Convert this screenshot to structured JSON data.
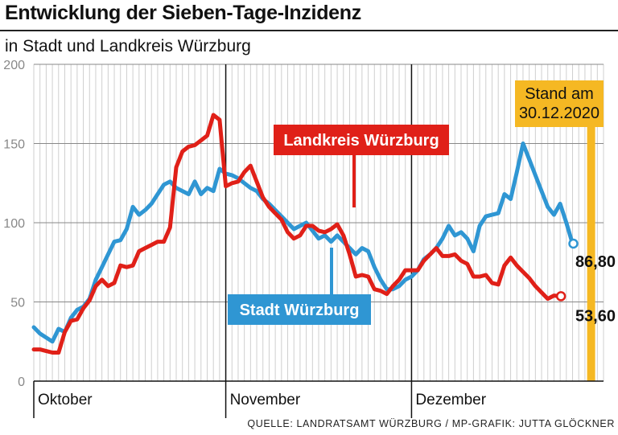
{
  "header": {
    "title": "Entwicklung der Sieben-Tage-Inzidenz",
    "subtitle": "in Stadt und Landkreis Würzburg",
    "source": "QUELLE: LANDRATSAMT WÜRZBURG / MP-GRAFIK: JUTTA GLÖCKNER"
  },
  "colors": {
    "stadt": "#2f96d3",
    "landkreis": "#e02018",
    "stand_bar": "#f5b823",
    "grid": "#cfcfcf"
  },
  "chart_data": {
    "type": "line",
    "title": "Entwicklung der Sieben-Tage-Inzidenz",
    "subtitle": "in Stadt und Landkreis Würzburg",
    "ylim": [
      0,
      200
    ],
    "yticks": [
      "0",
      "50",
      "100",
      "150",
      "200"
    ],
    "months": [
      {
        "label": "Oktober",
        "start_day": 0
      },
      {
        "label": "November",
        "start_day": 31
      },
      {
        "label": "Dezember",
        "start_day": 61
      }
    ],
    "x_note": "day index 0 = 1 Oct 2020, 90 = 30 Dec 2020",
    "xlim": [
      0,
      92
    ],
    "stand_label": [
      "Stand am",
      "30.12.2020"
    ],
    "stand_day": 90,
    "series": [
      {
        "name": "Stadt Würzburg",
        "color": "#2f96d3",
        "end_label": "86,80",
        "points": [
          [
            0,
            34
          ],
          [
            1,
            30
          ],
          [
            3,
            25
          ],
          [
            4,
            33
          ],
          [
            5,
            31
          ],
          [
            6,
            40
          ],
          [
            7,
            45
          ],
          [
            8,
            47
          ],
          [
            9,
            52
          ],
          [
            10,
            64
          ],
          [
            11,
            72
          ],
          [
            12,
            80
          ],
          [
            13,
            88
          ],
          [
            14,
            89
          ],
          [
            15,
            96
          ],
          [
            16,
            110
          ],
          [
            17,
            105
          ],
          [
            18,
            108
          ],
          [
            19,
            112
          ],
          [
            20,
            118
          ],
          [
            21,
            124
          ],
          [
            22,
            126
          ],
          [
            23,
            122
          ],
          [
            24,
            120
          ],
          [
            25,
            118
          ],
          [
            26,
            126
          ],
          [
            27,
            118
          ],
          [
            28,
            122
          ],
          [
            29,
            120
          ],
          [
            30,
            134
          ],
          [
            31,
            131
          ],
          [
            32,
            130
          ],
          [
            33,
            128
          ],
          [
            34,
            125
          ],
          [
            35,
            122
          ],
          [
            36,
            120
          ],
          [
            37,
            115
          ],
          [
            38,
            112
          ],
          [
            39,
            108
          ],
          [
            40,
            104
          ],
          [
            41,
            100
          ],
          [
            42,
            96
          ],
          [
            43,
            98
          ],
          [
            44,
            100
          ],
          [
            45,
            95
          ],
          [
            46,
            90
          ],
          [
            47,
            92
          ],
          [
            48,
            88
          ],
          [
            49,
            92
          ],
          [
            50,
            88
          ],
          [
            51,
            84
          ],
          [
            52,
            80
          ],
          [
            53,
            84
          ],
          [
            54,
            82
          ],
          [
            55,
            72
          ],
          [
            56,
            64
          ],
          [
            57,
            58
          ],
          [
            58,
            58
          ],
          [
            59,
            60
          ],
          [
            60,
            64
          ],
          [
            61,
            66
          ],
          [
            62,
            70
          ],
          [
            63,
            77
          ],
          [
            64,
            80
          ],
          [
            65,
            84
          ],
          [
            66,
            90
          ],
          [
            67,
            98
          ],
          [
            68,
            92
          ],
          [
            69,
            94
          ],
          [
            70,
            90
          ],
          [
            71,
            82
          ],
          [
            72,
            98
          ],
          [
            73,
            104
          ],
          [
            74,
            105
          ],
          [
            75,
            106
          ],
          [
            76,
            118
          ],
          [
            77,
            115
          ],
          [
            78,
            132
          ],
          [
            79,
            150
          ],
          [
            80,
            140
          ],
          [
            81,
            130
          ],
          [
            82,
            120
          ],
          [
            83,
            110
          ],
          [
            84,
            105
          ],
          [
            85,
            112
          ],
          [
            86,
            100
          ],
          [
            87,
            86.8
          ]
        ]
      },
      {
        "name": "Landkreis Würzburg",
        "color": "#e02018",
        "end_label": "53,60",
        "points": [
          [
            0,
            20
          ],
          [
            1,
            20
          ],
          [
            2,
            19
          ],
          [
            3,
            18
          ],
          [
            4,
            18
          ],
          [
            5,
            31
          ],
          [
            6,
            38
          ],
          [
            7,
            39
          ],
          [
            8,
            46
          ],
          [
            9,
            51
          ],
          [
            10,
            60
          ],
          [
            11,
            64
          ],
          [
            12,
            60
          ],
          [
            13,
            62
          ],
          [
            14,
            73
          ],
          [
            15,
            72
          ],
          [
            16,
            73
          ],
          [
            17,
            82
          ],
          [
            18,
            84
          ],
          [
            19,
            86
          ],
          [
            20,
            88
          ],
          [
            21,
            88
          ],
          [
            22,
            97
          ],
          [
            23,
            135
          ],
          [
            24,
            145
          ],
          [
            25,
            148
          ],
          [
            26,
            149
          ],
          [
            27,
            152
          ],
          [
            28,
            155
          ],
          [
            29,
            168
          ],
          [
            30,
            165
          ],
          [
            31,
            123
          ],
          [
            32,
            125
          ],
          [
            33,
            126
          ],
          [
            34,
            132
          ],
          [
            35,
            136
          ],
          [
            36,
            126
          ],
          [
            37,
            116
          ],
          [
            38,
            110
          ],
          [
            39,
            106
          ],
          [
            40,
            102
          ],
          [
            41,
            94
          ],
          [
            42,
            90
          ],
          [
            43,
            92
          ],
          [
            44,
            98
          ],
          [
            45,
            98
          ],
          [
            46,
            95
          ],
          [
            47,
            94
          ],
          [
            48,
            96
          ],
          [
            49,
            99
          ],
          [
            50,
            92
          ],
          [
            51,
            80
          ],
          [
            52,
            66
          ],
          [
            53,
            67
          ],
          [
            54,
            66
          ],
          [
            55,
            58
          ],
          [
            56,
            57
          ],
          [
            57,
            55
          ],
          [
            58,
            60
          ],
          [
            59,
            64
          ],
          [
            60,
            70
          ],
          [
            61,
            70
          ],
          [
            62,
            70
          ],
          [
            63,
            76
          ],
          [
            64,
            80
          ],
          [
            65,
            84
          ],
          [
            66,
            79
          ],
          [
            67,
            79
          ],
          [
            68,
            80
          ],
          [
            69,
            76
          ],
          [
            70,
            74
          ],
          [
            71,
            66
          ],
          [
            72,
            66
          ],
          [
            73,
            67
          ],
          [
            74,
            62
          ],
          [
            75,
            61
          ],
          [
            76,
            73
          ],
          [
            77,
            78
          ],
          [
            78,
            73
          ],
          [
            79,
            69
          ],
          [
            80,
            65
          ],
          [
            81,
            60
          ],
          [
            82,
            56
          ],
          [
            83,
            52
          ],
          [
            84,
            54
          ],
          [
            85,
            53.6
          ]
        ]
      }
    ]
  }
}
